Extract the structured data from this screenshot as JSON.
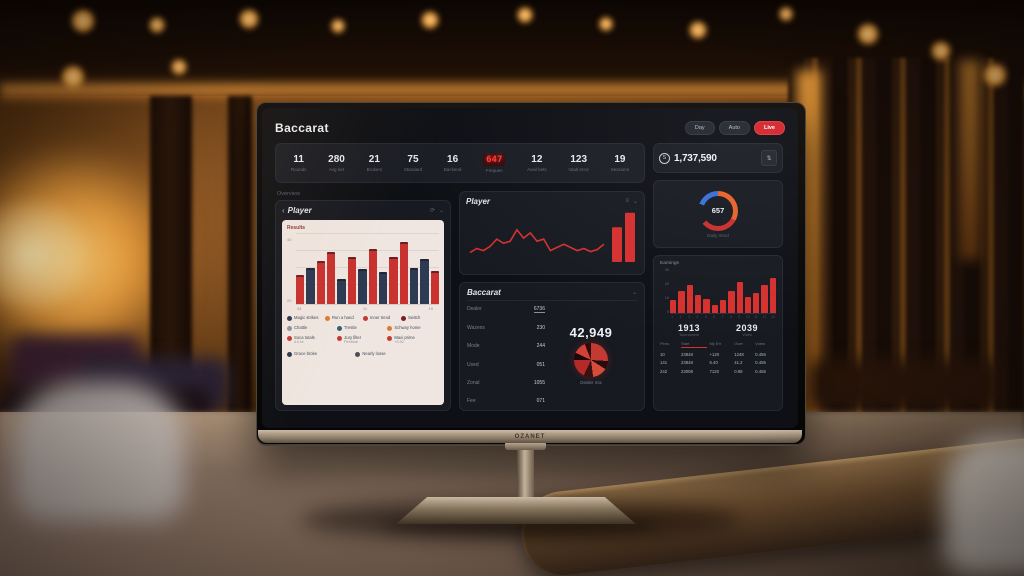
{
  "app": {
    "title": "Baccarat",
    "brand": "OZANET"
  },
  "header": {
    "pills": [
      {
        "label": "Day",
        "accent": false
      },
      {
        "label": "Auto",
        "accent": false
      },
      {
        "label": "Live",
        "accent": true
      }
    ]
  },
  "stats": [
    {
      "value": "11",
      "label": "Rounds",
      "digital": false
    },
    {
      "value": "280",
      "label": "Avg bet",
      "digital": false
    },
    {
      "value": "21",
      "label": "Brokers",
      "digital": false
    },
    {
      "value": "75",
      "label": "Standard",
      "digital": false
    },
    {
      "value": "16",
      "label": "Backend",
      "digital": false
    },
    {
      "value": "647",
      "label": "Frequen",
      "digital": true
    },
    {
      "value": "12",
      "label": "Avail bets",
      "digital": false
    },
    {
      "value": "123",
      "label": "Vault error",
      "digital": false
    },
    {
      "value": "19",
      "label": "Sessions",
      "digital": false
    }
  ],
  "balance": {
    "icon": "coin-icon",
    "value": "1,737,590",
    "button_icon": "⇅"
  },
  "overview": {
    "section_label": "Overview"
  },
  "player_panel": {
    "back_icon": "‹",
    "title": "Player",
    "icon1": "⟳",
    "icon2": "⌄"
  },
  "line_panel": {
    "title": "Player",
    "icon1": "≡",
    "icon2": "⌄"
  },
  "donut_card": {
    "caption": "Daily trend"
  },
  "baccarat_panel": {
    "title": "Baccarat",
    "chevron": "⌄",
    "rows": [
      {
        "k": "Dealer",
        "v": "6736"
      },
      {
        "k": "Wazens",
        "v": "230"
      },
      {
        "k": "Mode",
        "v": "244"
      },
      {
        "k": "Used",
        "v": "051"
      },
      {
        "k": "Zonal",
        "v": "1055"
      },
      {
        "k": "Fee",
        "v": "071"
      }
    ],
    "big_value": "42,949",
    "pie_caption": "Dealer mix"
  },
  "earnings_panel": {
    "title": "Earnings",
    "numbers": [
      {
        "value": "1913",
        "caption": "Tournament"
      },
      {
        "value": "2039",
        "caption": "Votes"
      }
    ],
    "table": {
      "headers": [
        "Pens",
        "Start",
        "My Err",
        "Over",
        "Votes"
      ],
      "underline_col": 1,
      "rows": [
        [
          "10",
          "23848",
          "+120",
          "1248",
          "0.456"
        ],
        [
          "141",
          "23848",
          "6.40",
          "41.2",
          "0.455"
        ],
        [
          "242",
          "23008",
          "7120",
          "0.98",
          "0.455"
        ]
      ]
    }
  },
  "legend": [
    {
      "color": "#2d3a53",
      "label": "Magic strikes",
      "sub": ""
    },
    {
      "color": "#e07a2e",
      "label": "Run a hand",
      "sub": ""
    },
    {
      "color": "#c23a32",
      "label": "Inner trend",
      "sub": ""
    },
    {
      "color": "#7c1d20",
      "label": "Switch",
      "sub": ""
    },
    {
      "color": "#8e949e",
      "label": "Chattle",
      "sub": ""
    },
    {
      "color": "#2f6470",
      "label": "Trestle",
      "sub": ""
    },
    {
      "color": "#e07a2e",
      "label": "Schway home",
      "sub": ""
    },
    {
      "color": "#c23a32",
      "label": "Soca totals",
      "sub": "4.0 br"
    },
    {
      "color": "#c23a32",
      "label": "Jury filter",
      "sub": "Fireblue"
    },
    {
      "color": "#c23a32",
      "label": "Maxi prime",
      "sub": "+0.02"
    },
    {
      "color": "#2d3a53",
      "label": "Grace broke",
      "sub": ""
    },
    {
      "color": "#4a4f58",
      "label": "Nearly loose",
      "sub": ""
    }
  ],
  "colors": {
    "red": "#c8322f",
    "navy": "#2d3a53",
    "accent": "#d5252d"
  },
  "chart_data": [
    {
      "id": "results-bars",
      "type": "bar",
      "title": "Results",
      "ylabels": [
        "40",
        "20"
      ],
      "xlabels": [
        "04",
        "11",
        "19"
      ],
      "bars": [
        {
          "color": "red",
          "value": 38
        },
        {
          "color": "navy",
          "value": 48
        },
        {
          "color": "red",
          "value": 58
        },
        {
          "color": "red",
          "value": 70
        },
        {
          "color": "navy",
          "value": 32
        },
        {
          "color": "red",
          "value": 64
        },
        {
          "color": "navy",
          "value": 46
        },
        {
          "color": "red",
          "value": 74
        },
        {
          "color": "navy",
          "value": 42
        },
        {
          "color": "red",
          "value": 64
        },
        {
          "color": "red",
          "value": 85
        },
        {
          "color": "navy",
          "value": 48
        },
        {
          "color": "navy",
          "value": 60
        },
        {
          "color": "red",
          "value": 44
        }
      ]
    },
    {
      "id": "player-line",
      "type": "line",
      "color": "#d5302e",
      "points": [
        18,
        26,
        22,
        30,
        44,
        36,
        40,
        62,
        46,
        56,
        40,
        44,
        22,
        28,
        34,
        28,
        22,
        26,
        20,
        24,
        34
      ],
      "end_bars": [
        58,
        82
      ]
    },
    {
      "id": "shoe-donut",
      "type": "donut",
      "center": "657",
      "segments": [
        [
          "#e8622c",
          33
        ],
        [
          "#c92f2c",
          31
        ],
        [
          "#161a22",
          17
        ],
        [
          "#3a6fd8",
          19
        ]
      ]
    },
    {
      "id": "earnings-bars",
      "type": "bar",
      "values": [
        30,
        48,
        62,
        40,
        32,
        18,
        28,
        50,
        68,
        36,
        45,
        62,
        78
      ],
      "ylabels": [
        "30",
        "20",
        "10",
        "5"
      ],
      "xlabels": [
        "1",
        "2",
        "3",
        "4",
        "5",
        "6",
        "7",
        "8",
        "9",
        "10",
        "11",
        "12",
        "13"
      ]
    },
    {
      "id": "dealer-pie",
      "type": "pie",
      "segments": [
        [
          "#c23a32",
          26
        ],
        [
          "#2a0b0d",
          8
        ],
        [
          "#d44d3a",
          14
        ],
        [
          "#3a1013",
          9
        ],
        [
          "#b32a28",
          18
        ],
        [
          "#1e0708",
          7
        ],
        [
          "#d0413a",
          12
        ],
        [
          "#30090b",
          6
        ]
      ]
    }
  ]
}
